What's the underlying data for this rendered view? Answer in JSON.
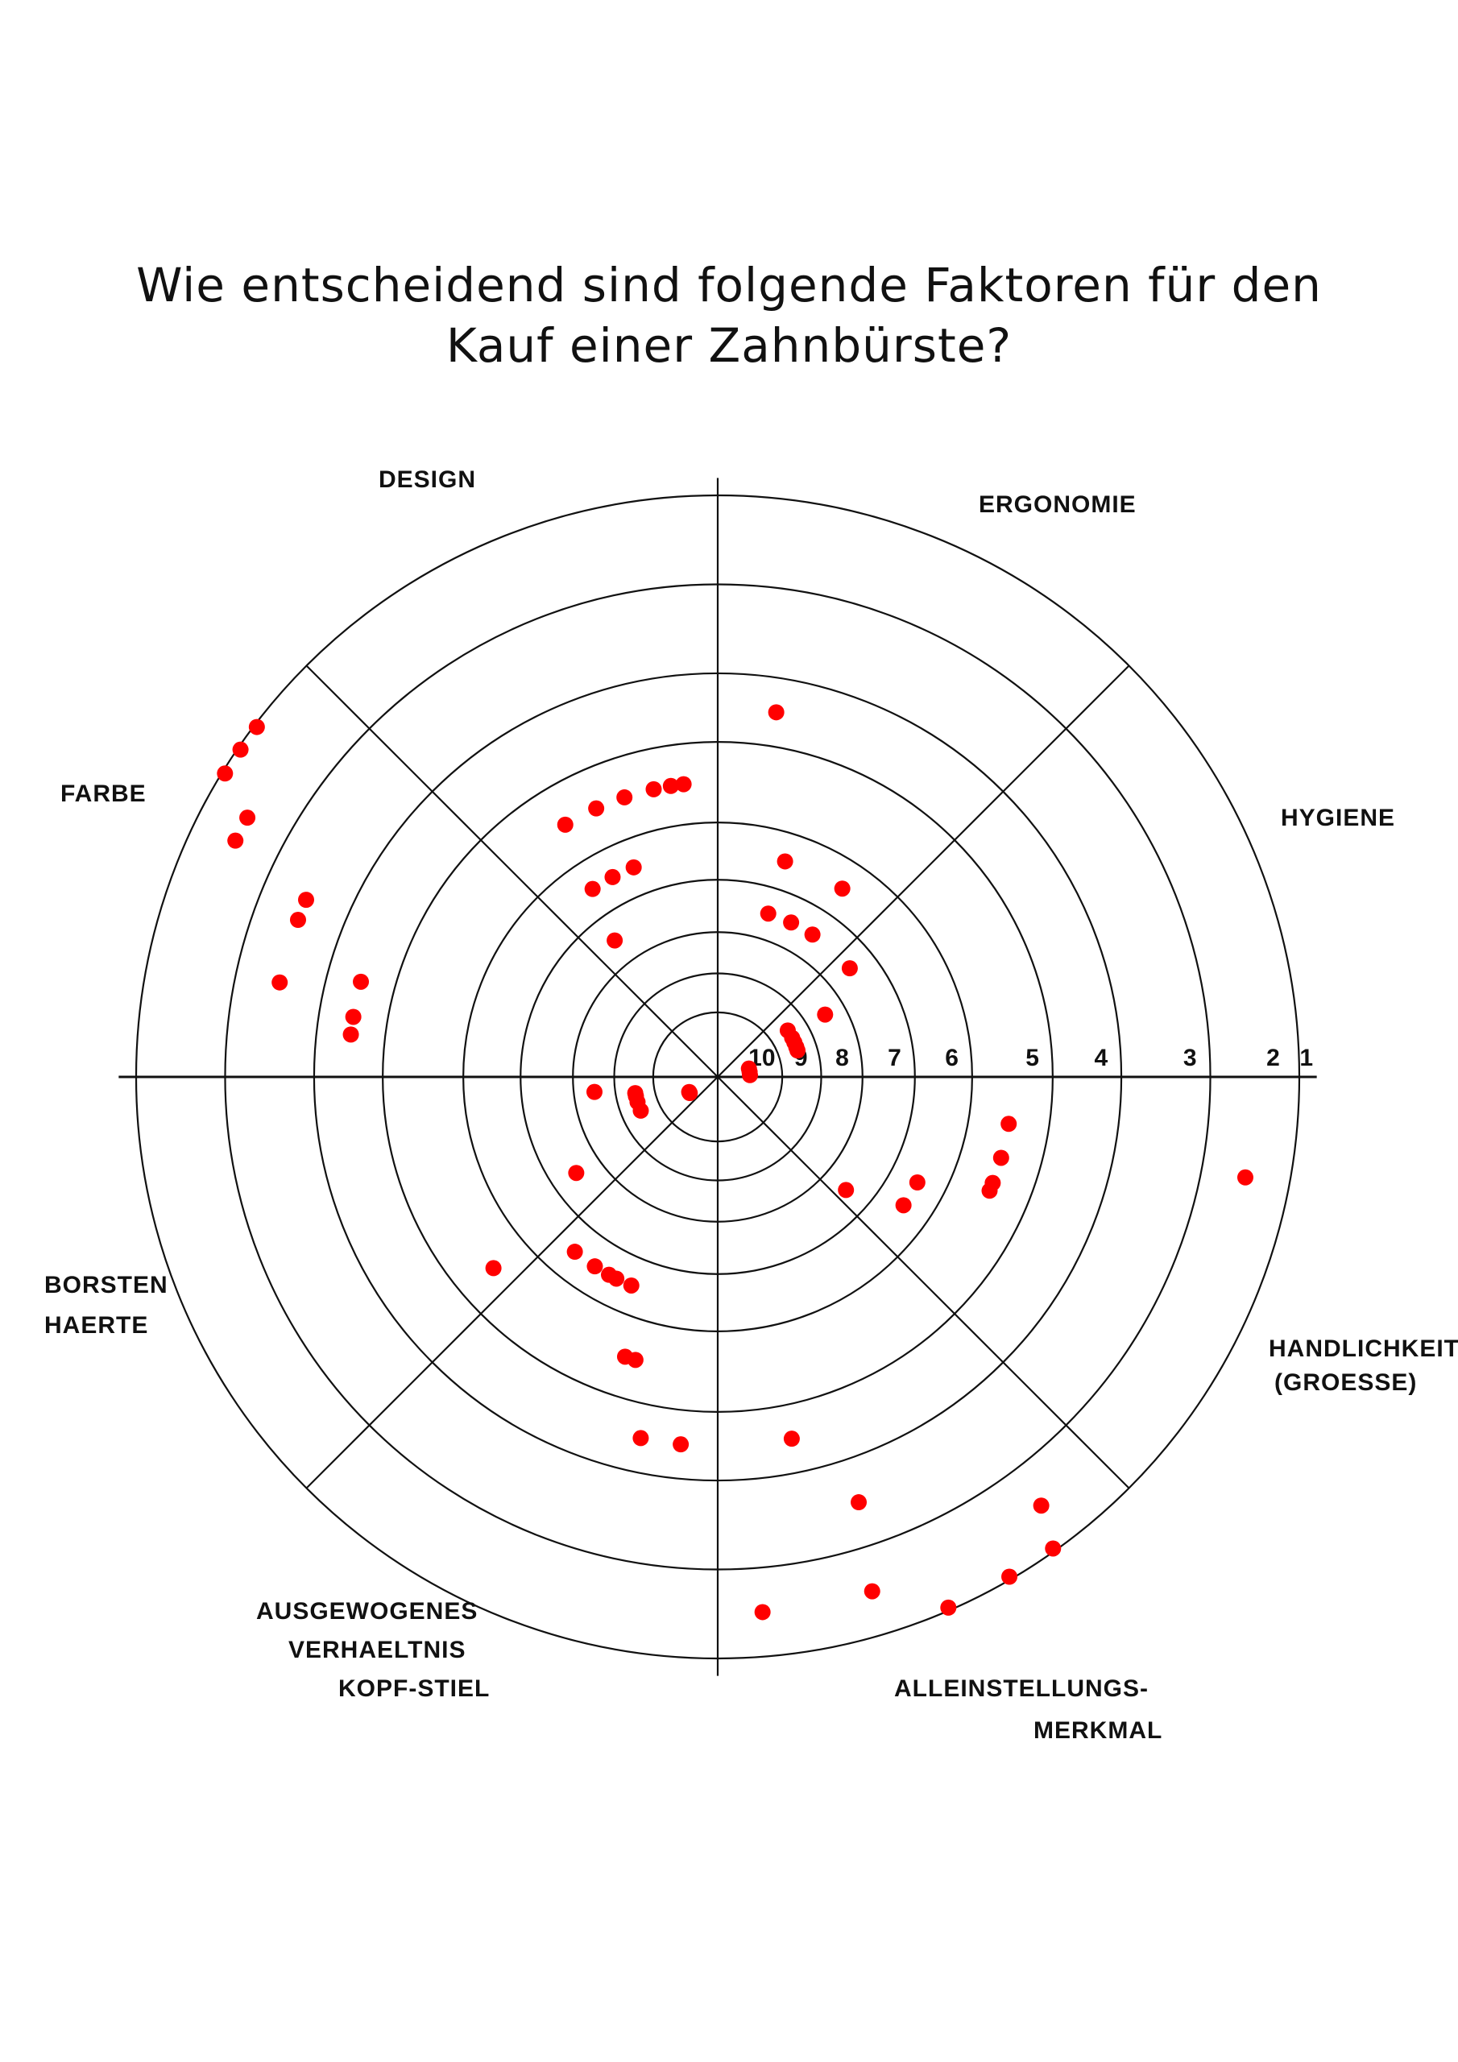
{
  "chart_data": {
    "type": "scatter",
    "subtype": "polar-dot-rating",
    "title_lines": [
      "Wie entscheidend sind folgende Faktoren für den",
      "Kauf einer Zahnbürste?"
    ],
    "scale": {
      "min": 1,
      "max": 10,
      "center_value": 10,
      "outer_value": 1
    },
    "scale_labels": [
      "10",
      "9",
      "8",
      "7",
      "6",
      "5",
      "4",
      "3",
      "2",
      "1"
    ],
    "dot_color": "#ff0000",
    "categories": [
      {
        "name_lines": [
          "HYGIENE"
        ],
        "scores": [
          10,
          10,
          10,
          9,
          9,
          9,
          8,
          9,
          9,
          7
        ]
      },
      {
        "name_lines": [
          "ERGONOMIE"
        ],
        "scores": [
          6,
          7,
          7,
          7,
          6,
          4
        ]
      },
      {
        "name_lines": [
          "DESIGN"
        ],
        "scores": [
          5,
          5,
          5,
          5,
          5,
          6,
          6,
          6,
          5,
          7
        ]
      },
      {
        "name_lines": [
          "FARBE"
        ],
        "scores": [
          1,
          1,
          1,
          2,
          3,
          2,
          3,
          4,
          4,
          3,
          4
        ]
      },
      {
        "name_lines": [
          "BORSTEN",
          "HAERTE"
        ],
        "scores": [
          8,
          9,
          9,
          9,
          9,
          10,
          10,
          7,
          5
        ]
      },
      {
        "name_lines": [
          "AUSGEWOGENES",
          "VERHAELTNIS",
          "KOPF-STIEL"
        ],
        "scores": [
          6,
          6,
          6,
          6,
          6,
          5,
          5,
          4,
          4
        ]
      },
      {
        "name_lines": [
          "ALLEINSTELLUNGS-",
          "MERKMAL"
        ],
        "scores": [
          2,
          4,
          3,
          2,
          1,
          1,
          2,
          1
        ]
      },
      {
        "name_lines": [
          "HANDLICHKEIT",
          "(GROESSE)"
        ],
        "scores": [
          7,
          6,
          6,
          5,
          5,
          5,
          5,
          2
        ]
      }
    ]
  }
}
